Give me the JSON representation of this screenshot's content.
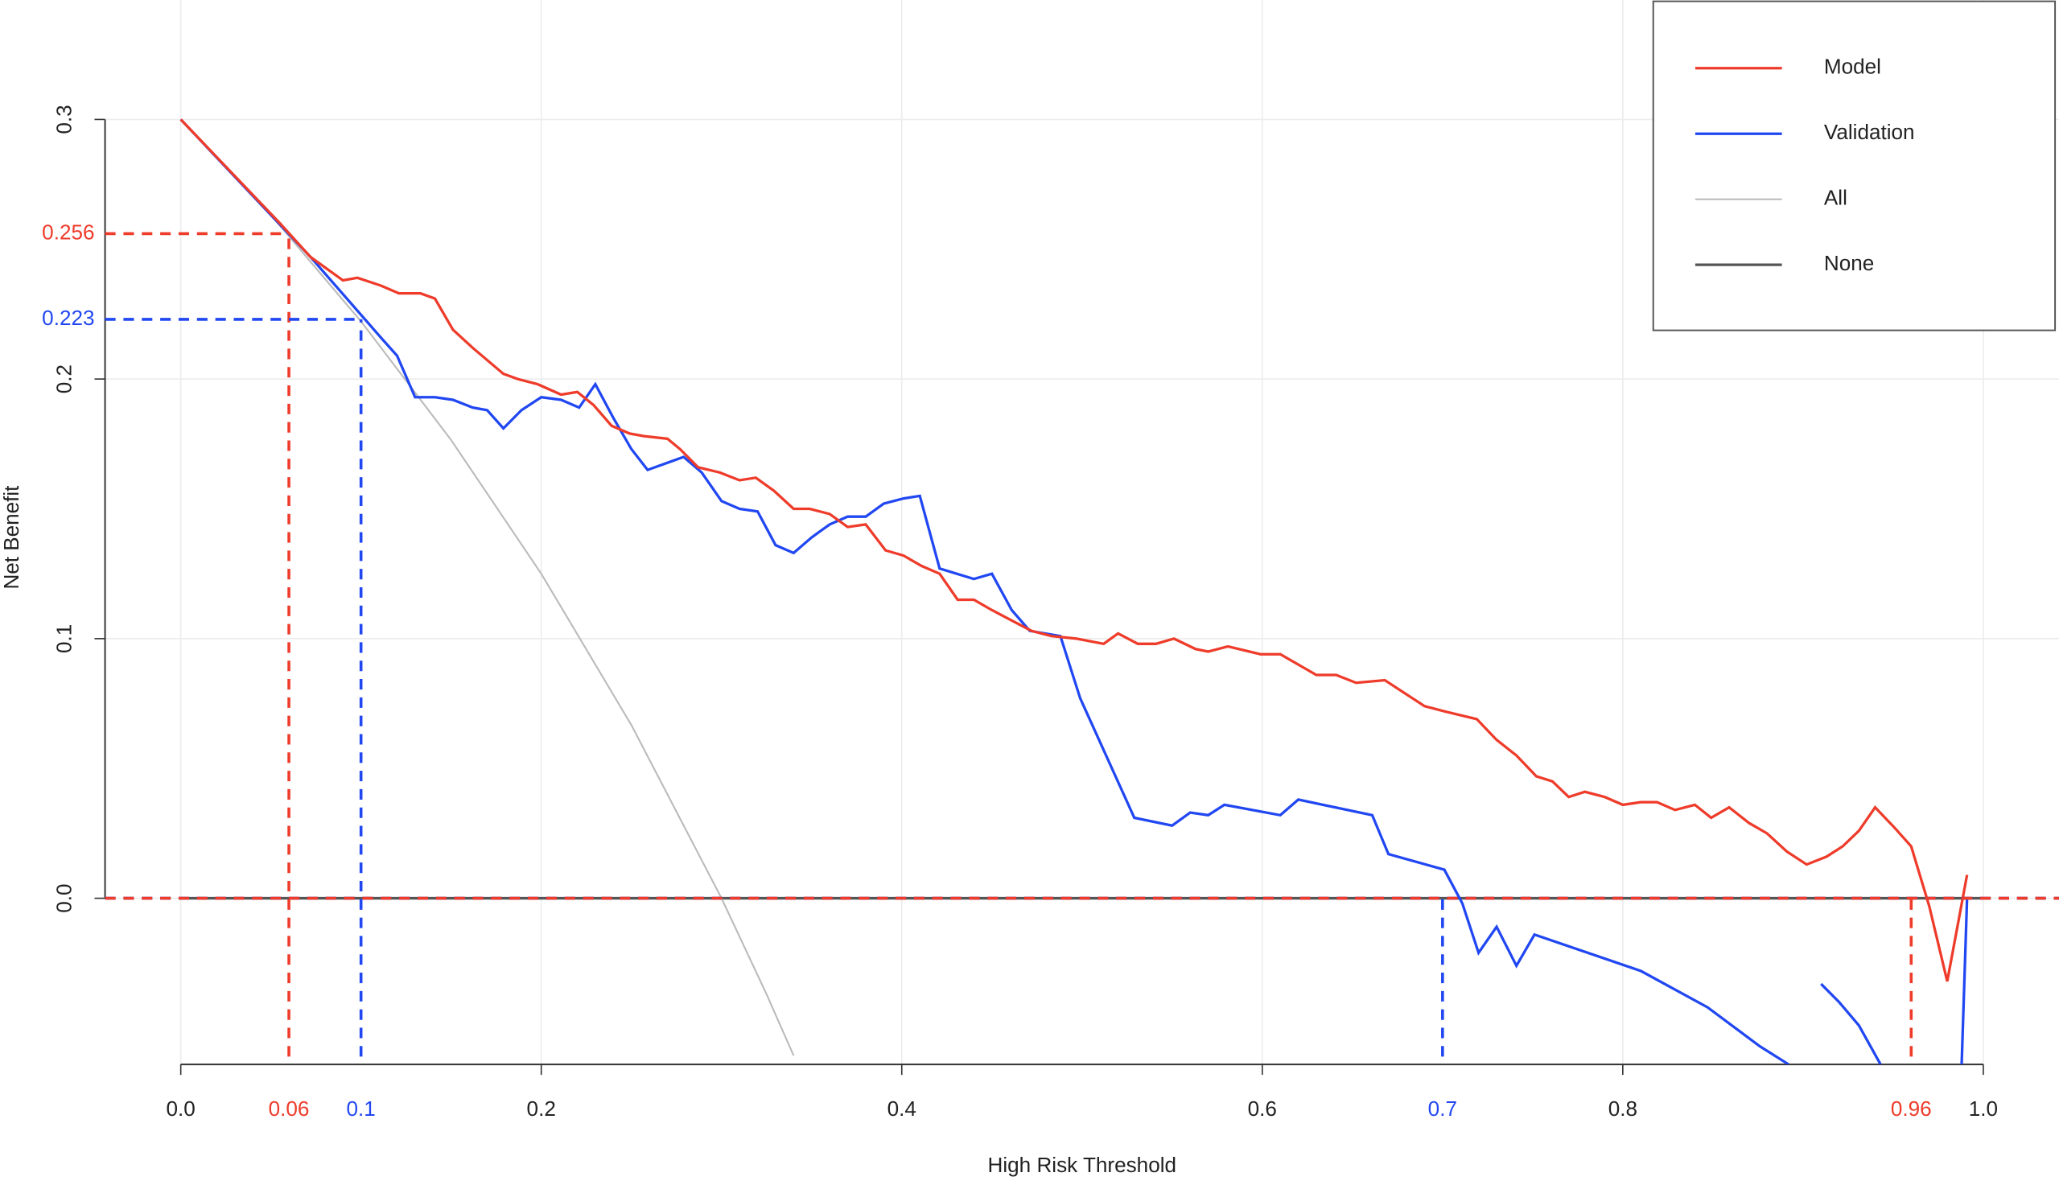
{
  "chart_data": {
    "type": "line",
    "x_label": "High Risk Threshold",
    "y_label": "Net Benefit",
    "xlim": [
      -0.042,
      1.042
    ],
    "ylim": [
      -0.064,
      0.346
    ],
    "xticks": [
      {
        "value": 0,
        "label": "0.0"
      },
      0.2,
      0.4,
      0.6,
      0.8,
      {
        "value": 1,
        "label": "1.0"
      }
    ],
    "yticks": [
      {
        "value": 0,
        "label": "0.0"
      },
      0.1,
      0.2,
      0.3
    ],
    "grid": true,
    "legend": "top-right",
    "series": [
      {
        "name": "Model",
        "color": "#ee3b2a",
        "x": [
          0,
          0.055,
          0.072,
          0.09,
          0.098,
          0.111,
          0.121,
          0.133,
          0.141,
          0.151,
          0.162,
          0.179,
          0.187,
          0.198,
          0.211,
          0.22,
          0.229,
          0.239,
          0.249,
          0.257,
          0.27,
          0.277,
          0.287,
          0.299,
          0.31,
          0.319,
          0.329,
          0.34,
          0.349,
          0.36,
          0.37,
          0.38,
          0.391,
          0.401,
          0.411,
          0.421,
          0.431,
          0.44,
          0.45,
          0.461,
          0.472,
          0.483,
          0.497,
          0.512,
          0.52,
          0.531,
          0.541,
          0.551,
          0.563,
          0.57,
          0.581,
          0.599,
          0.61,
          0.63,
          0.641,
          0.652,
          0.668,
          0.69,
          0.701,
          0.719,
          0.73,
          0.741,
          0.752,
          0.761,
          0.77,
          0.779,
          0.79,
          0.8,
          0.81,
          0.819,
          0.829,
          0.84,
          0.849,
          0.859,
          0.87,
          0.88,
          0.891,
          0.902,
          0.913,
          0.922,
          0.931,
          0.94,
          0.951,
          0.96,
          0.97,
          0.98,
          0.991
        ],
        "values": [
          0.3,
          0.26,
          0.247,
          0.238,
          0.239,
          0.236,
          0.233,
          0.233,
          0.231,
          0.219,
          0.212,
          0.202,
          0.2,
          0.198,
          0.194,
          0.195,
          0.19,
          0.182,
          0.179,
          0.178,
          0.177,
          0.173,
          0.166,
          0.164,
          0.161,
          0.162,
          0.157,
          0.15,
          0.15,
          0.148,
          0.143,
          0.144,
          0.134,
          0.132,
          0.128,
          0.125,
          0.115,
          0.115,
          0.111,
          0.107,
          0.103,
          0.101,
          0.1,
          0.098,
          0.102,
          0.098,
          0.098,
          0.1,
          0.096,
          0.095,
          0.097,
          0.094,
          0.094,
          0.086,
          0.086,
          0.083,
          0.084,
          0.074,
          0.072,
          0.069,
          0.061,
          0.055,
          0.047,
          0.045,
          0.039,
          0.041,
          0.039,
          0.036,
          0.037,
          0.037,
          0.034,
          0.036,
          0.031,
          0.035,
          0.029,
          0.025,
          0.018,
          0.013,
          0.016,
          0.02,
          0.026,
          0.035,
          0.027,
          0.02,
          -0.003,
          -0.032,
          0.009
        ]
      },
      {
        "name": "Validation",
        "color": "#2147f2",
        "x": [
          0,
          0.072,
          0.111,
          0.12,
          0.13,
          0.141,
          0.151,
          0.162,
          0.17,
          0.179,
          0.189,
          0.2,
          0.211,
          0.221,
          0.23,
          0.24,
          0.25,
          0.259,
          0.271,
          0.279,
          0.289,
          0.3,
          0.31,
          0.32,
          0.33,
          0.34,
          0.35,
          0.36,
          0.37,
          0.38,
          0.39,
          0.401,
          0.41,
          0.421,
          0.44,
          0.45,
          0.461,
          0.471,
          0.488,
          0.499,
          0.529,
          0.55,
          0.56,
          0.57,
          0.579,
          0.61,
          0.62,
          0.661,
          0.67,
          0.701,
          0.711,
          0.72,
          0.73,
          0.741,
          0.751,
          0.81,
          0.847,
          0.876,
          0.892,
          0.9,
          0.91,
          0.92,
          0.931,
          0.943,
          0.96,
          0.988,
          0.991
        ],
        "values": [
          0.3,
          0.247,
          0.216,
          0.209,
          0.193,
          0.193,
          0.192,
          0.189,
          0.188,
          0.181,
          0.188,
          0.193,
          0.192,
          0.189,
          0.198,
          0.185,
          0.173,
          0.165,
          0.168,
          0.17,
          0.164,
          0.153,
          0.15,
          0.149,
          0.136,
          0.133,
          0.139,
          0.144,
          0.147,
          0.147,
          0.152,
          0.154,
          0.155,
          0.127,
          0.123,
          0.125,
          0.111,
          0.103,
          0.101,
          0.077,
          0.031,
          0.028,
          0.033,
          0.032,
          0.036,
          0.032,
          0.038,
          0.032,
          0.017,
          0.011,
          -0.002,
          -0.021,
          -0.011,
          -0.026,
          -0.014,
          -0.028,
          -0.042,
          -0.057,
          -0.064,
          null,
          -0.033,
          -0.04,
          -0.049,
          -0.064,
          null,
          -0.064,
          0
        ]
      },
      {
        "name": "All",
        "color": "#bbbbbb",
        "x": [
          0,
          0.05,
          0.1,
          0.15,
          0.2,
          0.25,
          0.3,
          0.325,
          0.34
        ],
        "values": [
          0.3,
          0.2632,
          0.2222,
          0.1765,
          0.125,
          0.0667,
          0,
          -0.037,
          -0.0606
        ]
      },
      {
        "name": "None",
        "color": "#555555",
        "x": [
          0,
          1
        ],
        "values": [
          0,
          0
        ]
      }
    ],
    "markers": [
      {
        "x": 0.06,
        "y": 0.256,
        "color": "#ee3b2a"
      },
      {
        "x": 0.1,
        "y": 0.223,
        "color": "#2147f2"
      },
      {
        "x": 0.7,
        "y": 0,
        "color": "#2147f2"
      },
      {
        "x": 0.96,
        "y": 0,
        "color": "#ee3b2a"
      }
    ]
  }
}
